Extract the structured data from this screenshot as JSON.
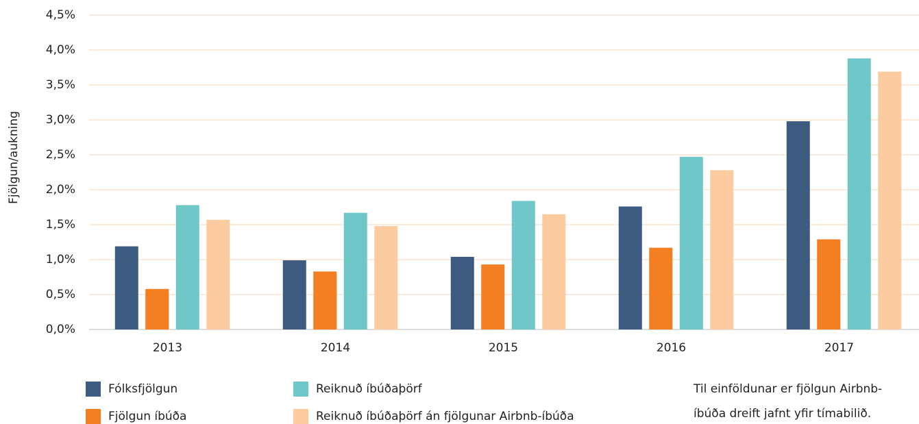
{
  "chart_data": {
    "type": "bar",
    "y_label": "Fjölgun/aukning",
    "categories": [
      "2013",
      "2014",
      "2015",
      "2016",
      "2017"
    ],
    "series": [
      {
        "name": "Fólksfjölgun",
        "color": "#3d5a80",
        "values": [
          1.19,
          0.99,
          1.04,
          1.76,
          2.98
        ]
      },
      {
        "name": "Fjölgun íbúða",
        "color": "#f37f22",
        "values": [
          0.58,
          0.83,
          0.93,
          1.17,
          1.29
        ]
      },
      {
        "name": "Reiknuð íbúðaþörf",
        "color": "#6fc7c7",
        "values": [
          1.78,
          1.67,
          1.84,
          2.47,
          3.88
        ]
      },
      {
        "name": "Reiknuð íbúðaþörf án fjölgunar Airbnb-íbúða",
        "color": "#fccca0",
        "values": [
          1.57,
          1.48,
          1.65,
          2.28,
          3.69
        ]
      }
    ],
    "ylim": [
      0,
      4.5
    ],
    "yticks": [
      {
        "value": 0,
        "label": "0,0%"
      },
      {
        "value": 0.5,
        "label": "0,5%"
      },
      {
        "value": 1,
        "label": "1,0%"
      },
      {
        "value": 1.5,
        "label": "1,5%"
      },
      {
        "value": 2,
        "label": "2,0%"
      },
      {
        "value": 2.5,
        "label": "2,5%"
      },
      {
        "value": 3,
        "label": "3,0%"
      },
      {
        "value": 3.5,
        "label": "3,5%"
      },
      {
        "value": 4,
        "label": "4,0%"
      },
      {
        "value": 4.5,
        "label": "4,5%"
      }
    ],
    "grid": true,
    "note": [
      "Til einföldunar er fjölgun Airbnb-",
      "íbúða dreift jafnt yfir tímabilið."
    ]
  }
}
